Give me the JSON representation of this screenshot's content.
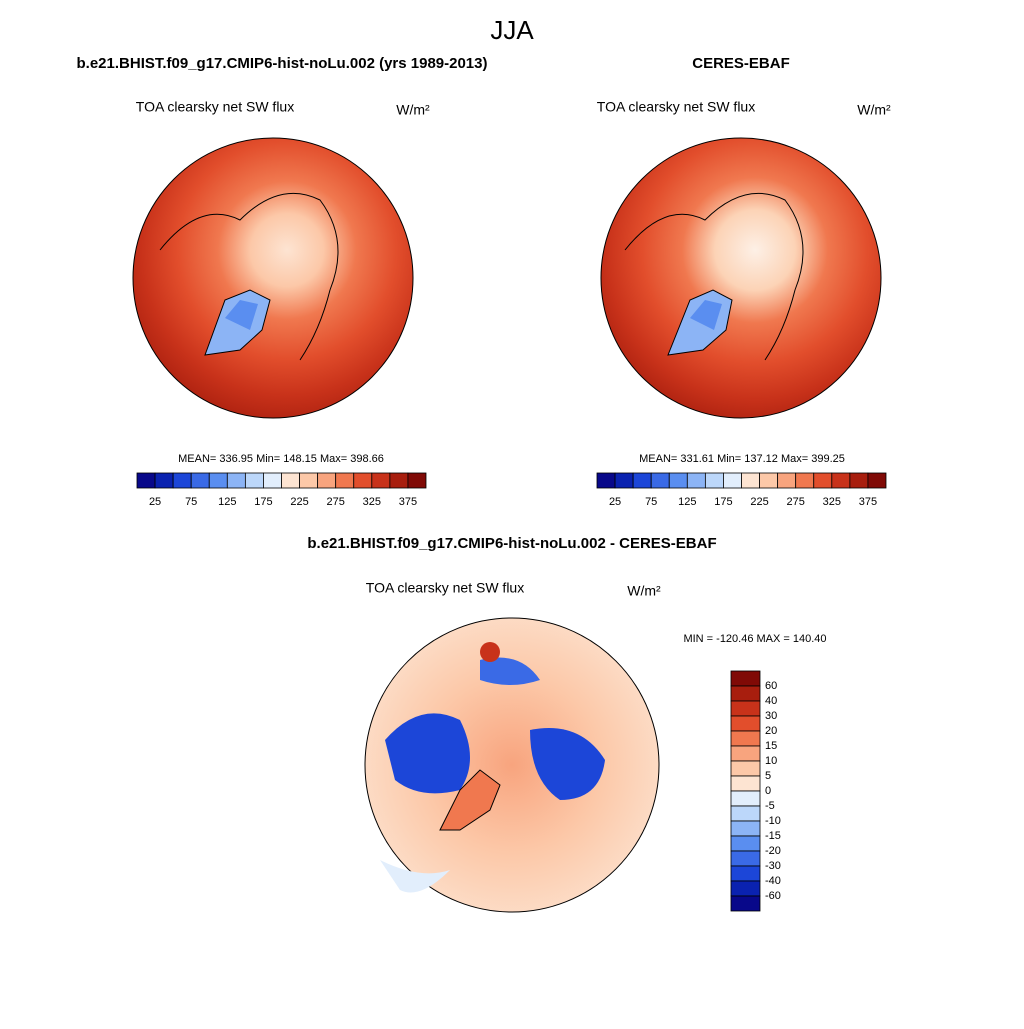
{
  "title": "JJA",
  "panels": [
    {
      "title": "b.e21.BHIST.f09_g17.CMIP6-hist-noLu.002 (yrs 1989-2013)",
      "variable": "TOA clearsky net SW flux",
      "units": "W/m²",
      "stats": "MEAN= 336.95  Min= 148.15  Max= 398.66"
    },
    {
      "title": "CERES-EBAF",
      "variable": "TOA clearsky net SW flux",
      "units": "W/m²",
      "stats": "MEAN= 331.61  Min= 137.12  Max= 399.25"
    },
    {
      "title": "b.e21.BHIST.f09_g17.CMIP6-hist-noLu.002 - CERES-EBAF",
      "variable": "TOA clearsky net SW flux",
      "units": "W/m²",
      "stats": "MIN = -120.46 MAX = 140.40"
    }
  ],
  "colorbar_abs": {
    "colors": [
      "#08088a",
      "#0a22b0",
      "#1c46d8",
      "#3a6ae6",
      "#5a8ef0",
      "#8cb4f5",
      "#bcd7fa",
      "#e2eefc",
      "#fde4d2",
      "#fcc8a8",
      "#f8a47e",
      "#f0784f",
      "#e24e2c",
      "#c8321a",
      "#a81e0e",
      "#800a06"
    ],
    "ticks": [
      25,
      75,
      125,
      175,
      225,
      275,
      325,
      375
    ]
  },
  "colorbar_diff": {
    "colors": [
      "#800a06",
      "#a81e0e",
      "#c8321a",
      "#e24e2c",
      "#f0784f",
      "#f8a47e",
      "#fcc8a8",
      "#fde4d2",
      "#e2eefc",
      "#bcd7fa",
      "#8cb4f5",
      "#5a8ef0",
      "#3a6ae6",
      "#1c46d8",
      "#0a22b0",
      "#08088a"
    ],
    "ticks": [
      60,
      40,
      30,
      20,
      15,
      10,
      5,
      0,
      -5,
      -10,
      -15,
      -20,
      -30,
      -40,
      -60
    ]
  }
}
